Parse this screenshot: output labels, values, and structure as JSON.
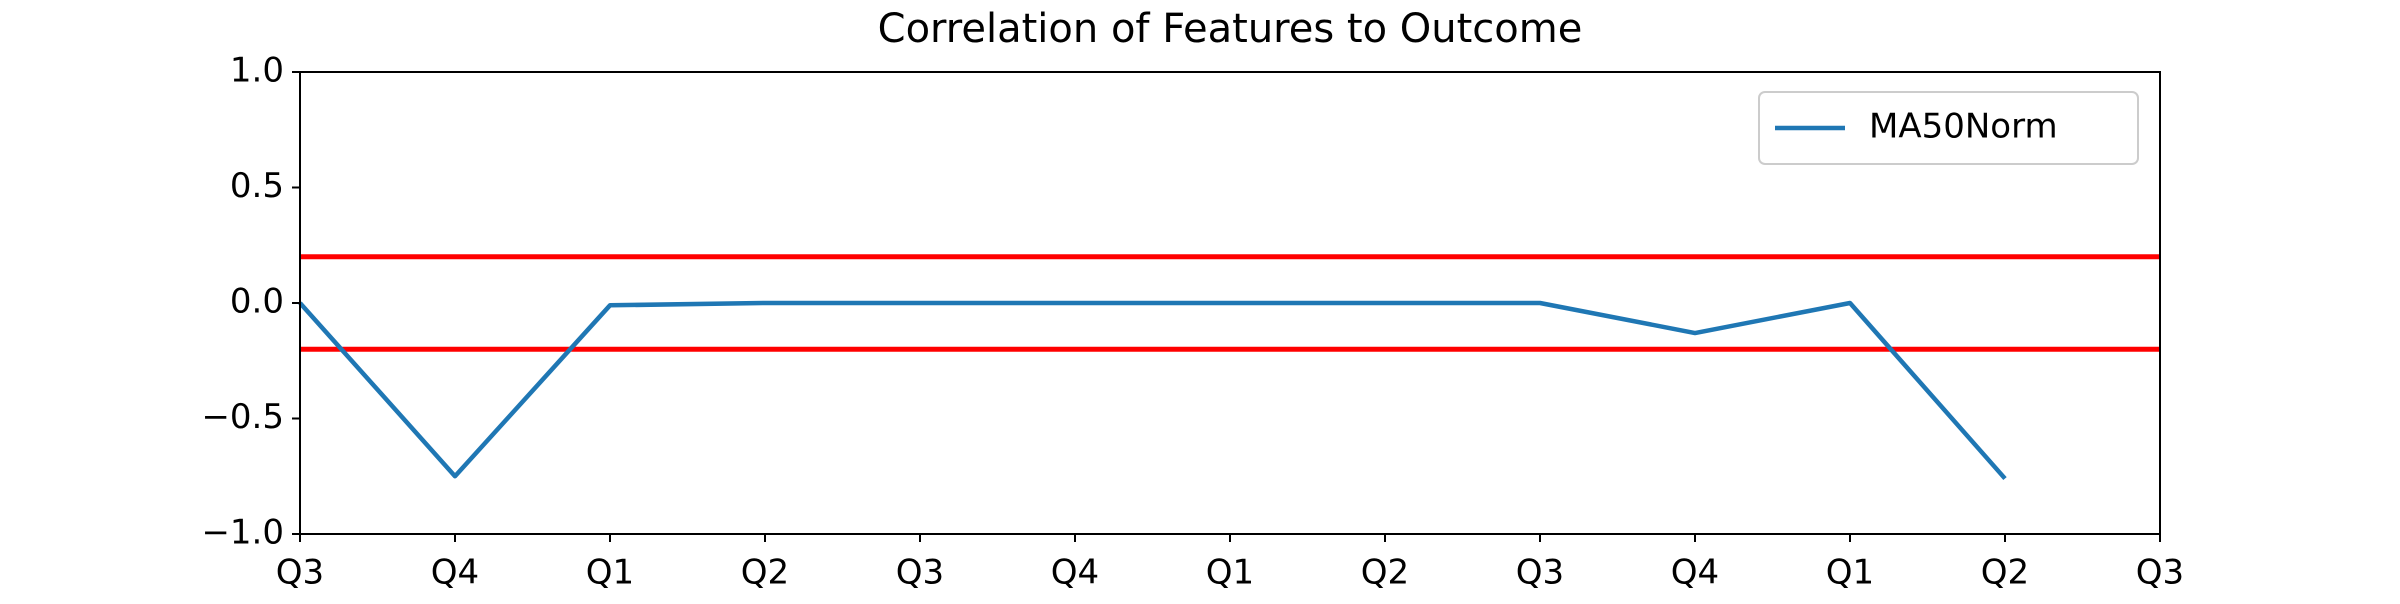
{
  "chart_data": {
    "type": "line",
    "title": "Correlation of Features to Outcome",
    "categories": [
      "Q3",
      "Q4",
      "Q1",
      "Q2",
      "Q3",
      "Q4",
      "Q1",
      "Q2",
      "Q3",
      "Q4",
      "Q1",
      "Q2",
      "Q3"
    ],
    "series": [
      {
        "name": "MA50Norm",
        "color": "#1f77b4",
        "values": [
          0,
          -0.75,
          -0.01,
          0,
          0,
          0,
          0,
          0,
          0,
          -0.13,
          0,
          -0.76,
          null
        ]
      }
    ],
    "reference_lines": {
      "values": [
        0.2,
        -0.2
      ],
      "color": "#ff0000"
    },
    "ylim": [
      -1,
      1
    ],
    "yticks": [
      {
        "value": -1,
        "label": "−1.0"
      },
      {
        "value": -0.5,
        "label": "−0.5"
      },
      {
        "value": 0,
        "label": "0.0"
      },
      {
        "value": 0.5,
        "label": "0.5"
      },
      {
        "value": 1,
        "label": "1.0"
      }
    ],
    "legend": "upper right",
    "grid": false
  }
}
